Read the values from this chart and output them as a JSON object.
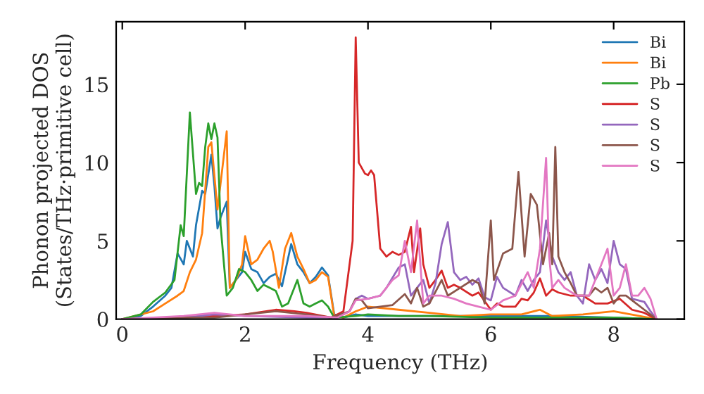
{
  "chart_data": {
    "type": "line",
    "xlabel": "Frequency (THz)",
    "ylabel": "Phonon projected DOS\n(States/THz·primitive cell)",
    "xlim": [
      -0.1,
      9.15
    ],
    "ylim": [
      0,
      19
    ],
    "xticks": [
      0,
      2,
      4,
      6,
      8
    ],
    "yticks": [
      0,
      5,
      10,
      15
    ],
    "grid": false,
    "legend": "top right",
    "series": [
      {
        "name": "Bi",
        "color": "#1f77b4",
        "x": [
          0,
          0.3,
          0.5,
          0.7,
          0.8,
          0.9,
          1.0,
          1.05,
          1.15,
          1.2,
          1.3,
          1.35,
          1.45,
          1.5,
          1.55,
          1.6,
          1.7,
          1.75,
          1.85,
          1.95,
          2.0,
          2.1,
          2.2,
          2.3,
          2.4,
          2.5,
          2.6,
          2.75,
          2.85,
          2.95,
          3.05,
          3.15,
          3.25,
          3.35,
          3.45,
          3.6,
          3.8,
          4,
          4.5,
          5,
          6,
          6.5,
          7,
          8,
          8.7
        ],
        "values": [
          0,
          0.2,
          0.8,
          1.5,
          2,
          4.2,
          3.5,
          5,
          4,
          6,
          8.2,
          8,
          10.5,
          8.5,
          5.8,
          6.5,
          7.5,
          2,
          2.5,
          3,
          4.3,
          3.2,
          3,
          2.3,
          2.7,
          2.9,
          2.1,
          4.8,
          3.5,
          3,
          2.3,
          2.7,
          3.3,
          2.8,
          0.3,
          0.1,
          0.3,
          0.2,
          0.2,
          0.2,
          null,
          0.2,
          0.2,
          0.1,
          0
        ]
      },
      {
        "name": "Bi",
        "color": "#ff7f0e",
        "x": [
          0,
          0.5,
          0.7,
          0.9,
          1.0,
          1.1,
          1.2,
          1.3,
          1.4,
          1.45,
          1.55,
          1.7,
          1.75,
          1.85,
          1.95,
          2.0,
          2.1,
          2.2,
          2.3,
          2.4,
          2.45,
          2.55,
          2.65,
          2.75,
          2.85,
          2.95,
          3.05,
          3.15,
          3.25,
          3.35,
          3.45,
          3.6,
          3.8,
          4,
          4.5,
          5,
          5.5,
          6,
          6.5,
          6.8,
          7,
          7.5,
          8,
          8.7
        ],
        "values": [
          0,
          0.5,
          1,
          1.5,
          1.8,
          3,
          3.8,
          5.5,
          11,
          11.3,
          7,
          12,
          2,
          2.5,
          3.5,
          5.3,
          3.5,
          3.8,
          4.5,
          5,
          4.3,
          2,
          4.5,
          5.5,
          4,
          3.2,
          2.3,
          2.5,
          3,
          2.7,
          0.2,
          0.1,
          0.5,
          0.8,
          0.6,
          0.4,
          0.2,
          0.3,
          0.3,
          0.6,
          0.2,
          0.3,
          0.5,
          0
        ]
      },
      {
        "name": "Pb",
        "color": "#2ca02c",
        "x": [
          0,
          0.3,
          0.5,
          0.7,
          0.85,
          0.95,
          1.0,
          1.1,
          1.2,
          1.25,
          1.3,
          1.35,
          1.4,
          1.45,
          1.5,
          1.55,
          1.6,
          1.7,
          1.8,
          1.9,
          2.0,
          2.1,
          2.2,
          2.3,
          2.4,
          2.5,
          2.6,
          2.7,
          2.85,
          2.95,
          3.05,
          3.15,
          3.25,
          3.35,
          3.45,
          3.8,
          4,
          4.5,
          5,
          6,
          8,
          8.7
        ],
        "values": [
          0,
          0.3,
          1.1,
          1.7,
          2.5,
          6,
          5.3,
          13.2,
          8,
          8.7,
          8.5,
          11,
          12.5,
          11.5,
          12.5,
          11.6,
          6,
          1.5,
          2,
          3.2,
          3,
          2.5,
          1.8,
          2.2,
          2,
          1.8,
          0.8,
          1,
          2.5,
          1,
          0.8,
          1,
          1.2,
          0.8,
          0.1,
          0.2,
          0.3,
          0.2,
          0.2,
          0.1,
          0.1,
          0
        ]
      },
      {
        "name": "S",
        "color": "#d62728",
        "x": [
          0,
          1,
          1.5,
          2,
          2.5,
          2.8,
          3,
          3.4,
          3.6,
          3.75,
          3.8,
          3.85,
          3.95,
          4.0,
          4.05,
          4.1,
          4.2,
          4.3,
          4.4,
          4.5,
          4.6,
          4.7,
          4.75,
          4.85,
          4.9,
          5.0,
          5.1,
          5.2,
          5.3,
          5.4,
          5.5,
          5.7,
          5.8,
          6,
          6.1,
          6.2,
          6.4,
          6.5,
          6.6,
          6.7,
          6.8,
          6.9,
          7.0,
          7.1,
          7.3,
          7.5,
          7.7,
          7.9,
          8.1,
          8.3,
          8.5,
          8.7
        ],
        "values": [
          0,
          0.1,
          0.2,
          0.3,
          0.6,
          0.5,
          0.4,
          0.1,
          0.5,
          5,
          18,
          10,
          9.3,
          9.2,
          9.5,
          9.2,
          4.5,
          4,
          4.3,
          4.1,
          4.3,
          5.9,
          3,
          5.8,
          3.5,
          2.0,
          2.5,
          3.1,
          2,
          2.2,
          2,
          1.5,
          1.7,
          0.6,
          1,
          0.8,
          0.8,
          1.3,
          1.2,
          1.7,
          2.6,
          1.5,
          1.9,
          1.7,
          1.5,
          1.5,
          1.0,
          1.0,
          1.3,
          0.6,
          0.4,
          0
        ]
      },
      {
        "name": "S",
        "color": "#9467bd",
        "x": [
          0,
          1,
          1.5,
          2,
          3,
          3.5,
          3.7,
          3.8,
          3.9,
          4.0,
          4.2,
          4.3,
          4.5,
          4.6,
          4.7,
          4.9,
          5.0,
          5.1,
          5.2,
          5.3,
          5.4,
          5.5,
          5.6,
          5.7,
          5.8,
          5.9,
          6.0,
          6.1,
          6.2,
          6.4,
          6.5,
          6.6,
          6.7,
          6.8,
          6.9,
          7.0,
          7.1,
          7.2,
          7.3,
          7.4,
          7.5,
          7.6,
          7.7,
          7.8,
          7.9,
          8.0,
          8.1,
          8.2,
          8.3,
          8.5,
          8.6,
          8.7
        ],
        "values": [
          0,
          0.1,
          0.3,
          0.2,
          0.1,
          0.1,
          0.5,
          1.3,
          1.5,
          1.3,
          1.5,
          2.0,
          3.3,
          3.5,
          1.5,
          2.5,
          1,
          2.3,
          4.8,
          6.2,
          3,
          2.5,
          2.7,
          2.2,
          2.6,
          1.4,
          1.2,
          2.7,
          2,
          1.5,
          2.5,
          1.8,
          2.5,
          3,
          6.3,
          4,
          3,
          2.5,
          3,
          1.5,
          1,
          3.5,
          2.5,
          3.2,
          2.3,
          5.0,
          3.5,
          3.2,
          1.3,
          1.1,
          0.5,
          0
        ]
      },
      {
        "name": "S",
        "color": "#8c564b",
        "x": [
          0,
          1,
          1.5,
          2,
          2.5,
          3,
          3.4,
          3.7,
          3.8,
          3.9,
          4.0,
          4.2,
          4.4,
          4.6,
          4.7,
          4.8,
          4.9,
          5.0,
          5.2,
          5.3,
          5.5,
          5.7,
          5.8,
          5.9,
          6.0,
          6.05,
          6.2,
          6.35,
          6.45,
          6.55,
          6.65,
          6.75,
          6.85,
          6.95,
          7.0,
          7.05,
          7.1,
          7.2,
          7.3,
          7.4,
          7.5,
          7.6,
          7.7,
          7.8,
          7.9,
          8.0,
          8.1,
          8.2,
          8.3,
          8.5,
          8.7
        ],
        "values": [
          0,
          0.1,
          0.1,
          0.3,
          0.5,
          0.3,
          0.1,
          0.5,
          1.3,
          1.2,
          0.7,
          0.8,
          0.9,
          1.6,
          1.0,
          2.0,
          0.8,
          1.0,
          2.5,
          1.5,
          2.0,
          2.5,
          2.3,
          1.0,
          6.3,
          2.5,
          4.2,
          4.5,
          9.4,
          4,
          8.0,
          7.3,
          3.5,
          5.5,
          3.5,
          11,
          4,
          3,
          2.3,
          1.5,
          1.5,
          1.5,
          2.0,
          1.7,
          2.0,
          1.0,
          1.5,
          1.5,
          1.2,
          0.6,
          0
        ]
      },
      {
        "name": "S",
        "color": "#e377c2",
        "x": [
          0,
          1,
          1.5,
          2,
          3,
          3.5,
          3.7,
          3.8,
          4.0,
          4.2,
          4.4,
          4.5,
          4.6,
          4.7,
          4.8,
          4.9,
          5.0,
          5.2,
          5.4,
          5.6,
          5.8,
          6.0,
          6.2,
          6.4,
          6.6,
          6.7,
          6.8,
          6.9,
          6.95,
          7.0,
          7.1,
          7.2,
          7.4,
          7.6,
          7.8,
          7.9,
          8.0,
          8.1,
          8.2,
          8.3,
          8.4,
          8.5,
          8.6,
          8.7
        ],
        "values": [
          0,
          0.2,
          0.4,
          0.2,
          0.2,
          0.1,
          0.5,
          1.2,
          1.3,
          1.5,
          2.5,
          2.8,
          5,
          3,
          6.3,
          1.0,
          1.5,
          1.5,
          1.3,
          1.0,
          0.8,
          0.6,
          1.2,
          1.5,
          3,
          2,
          4.5,
          10.3,
          4,
          2,
          2.5,
          2,
          1.5,
          1.5,
          3.5,
          4.5,
          1.5,
          2,
          3.5,
          1.5,
          1.5,
          2,
          1.3,
          0
        ]
      }
    ]
  }
}
